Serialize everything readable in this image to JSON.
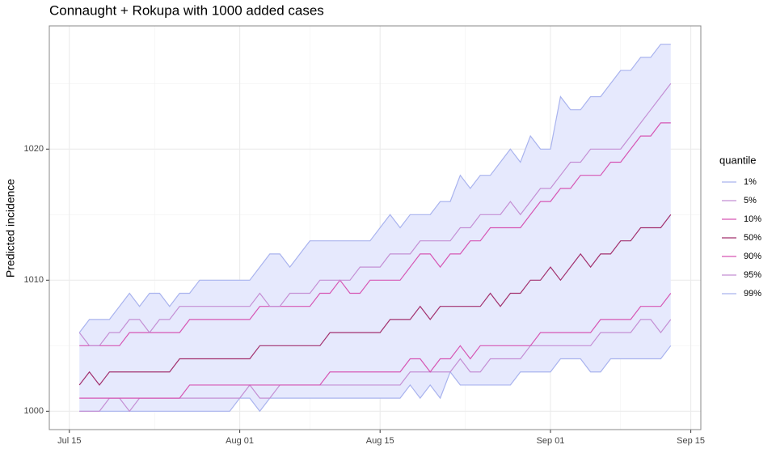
{
  "chart_data": {
    "type": "line",
    "title": "Connaught + Rokupa with 1000 added cases",
    "y_label": "Predicted incidence",
    "legend_title": "quantile",
    "legend_position": "right",
    "grid": true,
    "ribbon_color": "#e6e9fd",
    "x": [
      "Jul 16",
      "Jul 17",
      "Jul 18",
      "Jul 19",
      "Jul 20",
      "Jul 21",
      "Jul 22",
      "Jul 23",
      "Jul 24",
      "Jul 25",
      "Jul 26",
      "Jul 27",
      "Jul 28",
      "Jul 29",
      "Jul 30",
      "Jul 31",
      "Aug 01",
      "Aug 02",
      "Aug 03",
      "Aug 04",
      "Aug 05",
      "Aug 06",
      "Aug 07",
      "Aug 08",
      "Aug 09",
      "Aug 10",
      "Aug 11",
      "Aug 12",
      "Aug 13",
      "Aug 14",
      "Aug 15",
      "Aug 16",
      "Aug 17",
      "Aug 18",
      "Aug 19",
      "Aug 20",
      "Aug 21",
      "Aug 22",
      "Aug 23",
      "Aug 24",
      "Aug 25",
      "Aug 26",
      "Aug 27",
      "Aug 28",
      "Aug 29",
      "Aug 30",
      "Aug 31",
      "Sep 01",
      "Sep 02",
      "Sep 03",
      "Sep 04",
      "Sep 05",
      "Sep 06",
      "Sep 07",
      "Sep 08",
      "Sep 09",
      "Sep 10",
      "Sep 11",
      "Sep 12",
      "Sep 13"
    ],
    "xlim": [
      "Jul 13",
      "Sep 16"
    ],
    "xticks": [
      "Jul 15",
      "Aug 01",
      "Aug 15",
      "Sep 01",
      "Sep 15"
    ],
    "ylim": [
      998.6,
      1029.4
    ],
    "yticks": [
      1000,
      1010,
      1020
    ],
    "series": [
      {
        "name": "1%",
        "color": "#a9b3ee",
        "values": [
          1000,
          1000,
          1000,
          1000,
          1000,
          1000,
          1000,
          1000,
          1000,
          1000,
          1000,
          1000,
          1000,
          1000,
          1000,
          1000,
          1001,
          1001,
          1000,
          1001,
          1001,
          1001,
          1001,
          1001,
          1001,
          1001,
          1001,
          1001,
          1001,
          1001,
          1001,
          1001,
          1001,
          1002,
          1001,
          1002,
          1001,
          1003,
          1002,
          1002,
          1002,
          1002,
          1002,
          1002,
          1003,
          1003,
          1003,
          1003,
          1004,
          1004,
          1004,
          1003,
          1003,
          1004,
          1004,
          1004,
          1004,
          1004,
          1004,
          1005
        ]
      },
      {
        "name": "5%",
        "color": "#c48fd4",
        "values": [
          1000,
          1000,
          1000,
          1001,
          1001,
          1000,
          1001,
          1001,
          1001,
          1001,
          1001,
          1001,
          1001,
          1001,
          1001,
          1001,
          1001,
          1002,
          1001,
          1001,
          1002,
          1002,
          1002,
          1002,
          1002,
          1002,
          1002,
          1002,
          1002,
          1002,
          1002,
          1002,
          1002,
          1003,
          1003,
          1003,
          1003,
          1003,
          1004,
          1003,
          1003,
          1004,
          1004,
          1004,
          1004,
          1005,
          1005,
          1005,
          1005,
          1005,
          1005,
          1005,
          1006,
          1006,
          1006,
          1006,
          1007,
          1007,
          1006,
          1007
        ]
      },
      {
        "name": "10%",
        "color": "#d656b4",
        "values": [
          1001,
          1001,
          1001,
          1001,
          1001,
          1001,
          1001,
          1001,
          1001,
          1001,
          1001,
          1002,
          1002,
          1002,
          1002,
          1002,
          1002,
          1002,
          1002,
          1002,
          1002,
          1002,
          1002,
          1002,
          1002,
          1003,
          1003,
          1003,
          1003,
          1003,
          1003,
          1003,
          1003,
          1004,
          1004,
          1003,
          1004,
          1004,
          1005,
          1004,
          1005,
          1005,
          1005,
          1005,
          1005,
          1005,
          1006,
          1006,
          1006,
          1006,
          1006,
          1006,
          1007,
          1007,
          1007,
          1007,
          1008,
          1008,
          1008,
          1009
        ]
      },
      {
        "name": "50%",
        "color": "#a2306e",
        "values": [
          1002,
          1003,
          1002,
          1003,
          1003,
          1003,
          1003,
          1003,
          1003,
          1003,
          1004,
          1004,
          1004,
          1004,
          1004,
          1004,
          1004,
          1004,
          1005,
          1005,
          1005,
          1005,
          1005,
          1005,
          1005,
          1006,
          1006,
          1006,
          1006,
          1006,
          1006,
          1007,
          1007,
          1007,
          1008,
          1007,
          1008,
          1008,
          1008,
          1008,
          1008,
          1009,
          1008,
          1009,
          1009,
          1010,
          1010,
          1011,
          1010,
          1011,
          1012,
          1011,
          1012,
          1012,
          1013,
          1013,
          1014,
          1014,
          1014,
          1015
        ]
      },
      {
        "name": "90%",
        "color": "#d656b4",
        "values": [
          1005,
          1005,
          1005,
          1005,
          1005,
          1006,
          1006,
          1006,
          1006,
          1006,
          1006,
          1007,
          1007,
          1007,
          1007,
          1007,
          1007,
          1007,
          1008,
          1008,
          1008,
          1008,
          1008,
          1008,
          1009,
          1009,
          1010,
          1009,
          1009,
          1010,
          1010,
          1010,
          1010,
          1011,
          1012,
          1012,
          1011,
          1012,
          1012,
          1013,
          1013,
          1014,
          1014,
          1014,
          1014,
          1015,
          1016,
          1016,
          1017,
          1017,
          1018,
          1018,
          1018,
          1019,
          1019,
          1020,
          1021,
          1021,
          1022,
          1022
        ]
      },
      {
        "name": "95%",
        "color": "#c48fd4",
        "values": [
          1006,
          1005,
          1005,
          1006,
          1006,
          1007,
          1007,
          1006,
          1007,
          1007,
          1008,
          1008,
          1008,
          1008,
          1008,
          1008,
          1008,
          1008,
          1009,
          1008,
          1008,
          1009,
          1009,
          1009,
          1010,
          1010,
          1010,
          1010,
          1011,
          1011,
          1011,
          1012,
          1012,
          1012,
          1013,
          1013,
          1013,
          1013,
          1014,
          1014,
          1015,
          1015,
          1015,
          1016,
          1015,
          1016,
          1017,
          1017,
          1018,
          1019,
          1019,
          1020,
          1020,
          1020,
          1020,
          1021,
          1022,
          1023,
          1024,
          1025
        ]
      },
      {
        "name": "99%",
        "color": "#a9b3ee",
        "values": [
          1006,
          1007,
          1007,
          1007,
          1008,
          1009,
          1008,
          1009,
          1009,
          1008,
          1009,
          1009,
          1010,
          1010,
          1010,
          1010,
          1010,
          1010,
          1011,
          1012,
          1012,
          1011,
          1012,
          1013,
          1013,
          1013,
          1013,
          1013,
          1013,
          1013,
          1014,
          1015,
          1014,
          1015,
          1015,
          1015,
          1016,
          1016,
          1018,
          1017,
          1018,
          1018,
          1019,
          1020,
          1019,
          1021,
          1020,
          1020,
          1024,
          1023,
          1023,
          1024,
          1024,
          1025,
          1026,
          1026,
          1027,
          1027,
          1028,
          1028
        ]
      }
    ]
  }
}
